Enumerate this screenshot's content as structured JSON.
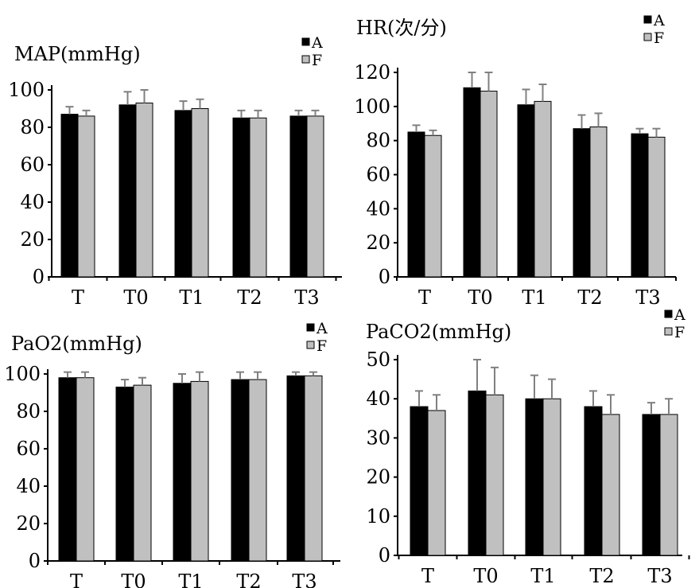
{
  "colors": {
    "series_a": "#000000",
    "series_f": "#c0c0c0",
    "axis": "#000000",
    "error_bar": "#808080"
  },
  "chart_data": [
    {
      "type": "bar",
      "title": "MAP(mmHg)",
      "categories": [
        "T",
        "T0",
        "T1",
        "T2",
        "T3"
      ],
      "series": [
        {
          "name": "A",
          "values": [
            87,
            92,
            89,
            85,
            86
          ],
          "errors": [
            4,
            7,
            5,
            4,
            3
          ]
        },
        {
          "name": "F",
          "values": [
            86,
            93,
            90,
            85,
            86
          ],
          "errors": [
            3,
            7,
            5,
            4,
            3
          ]
        }
      ],
      "ylim": [
        0,
        100
      ],
      "yticks": [
        0,
        20,
        40,
        60,
        80,
        100
      ],
      "legend": "top-right"
    },
    {
      "type": "bar",
      "title": "HR(次/分)",
      "categories": [
        "T",
        "T0",
        "T1",
        "T2",
        "T3"
      ],
      "series": [
        {
          "name": "A",
          "values": [
            85,
            111,
            101,
            87,
            84
          ],
          "errors": [
            4,
            9,
            9,
            8,
            3
          ]
        },
        {
          "name": "F",
          "values": [
            83,
            109,
            103,
            88,
            82
          ],
          "errors": [
            3,
            11,
            10,
            8,
            5
          ]
        }
      ],
      "ylim": [
        0,
        120
      ],
      "yticks": [
        0,
        20,
        40,
        60,
        80,
        100,
        120
      ],
      "legend": "top-right"
    },
    {
      "type": "bar",
      "title": "PaO2(mmHg)",
      "categories": [
        "T",
        "T0",
        "T1",
        "T2",
        "T3"
      ],
      "series": [
        {
          "name": "A",
          "values": [
            98,
            93,
            95,
            97,
            99
          ],
          "errors": [
            3,
            4,
            5,
            4,
            2
          ]
        },
        {
          "name": "F",
          "values": [
            98,
            94,
            96,
            97,
            99
          ],
          "errors": [
            3,
            4,
            5,
            4,
            2
          ]
        }
      ],
      "ylim": [
        0,
        100
      ],
      "yticks": [
        0,
        20,
        40,
        60,
        80,
        100
      ],
      "legend": "top-right"
    },
    {
      "type": "bar",
      "title": "PaCO2(mmHg)",
      "categories": [
        "T",
        "T0",
        "T1",
        "T2",
        "T3"
      ],
      "series": [
        {
          "name": "A",
          "values": [
            38,
            42,
            40,
            38,
            36
          ],
          "errors": [
            4,
            8,
            6,
            4,
            3
          ]
        },
        {
          "name": "F",
          "values": [
            37,
            41,
            40,
            36,
            36
          ],
          "errors": [
            4,
            7,
            5,
            5,
            4
          ]
        }
      ],
      "ylim": [
        0,
        50
      ],
      "yticks": [
        0,
        10,
        20,
        30,
        40,
        50
      ],
      "legend": "top-right"
    }
  ]
}
